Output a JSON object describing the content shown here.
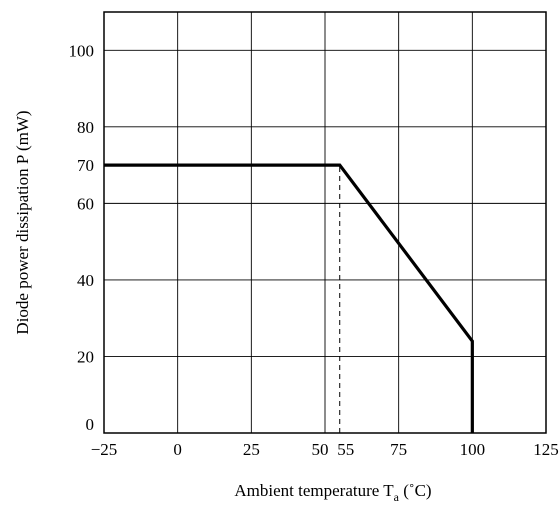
{
  "chart_data": {
    "type": "line",
    "title": "",
    "xlabel": "Ambient temperature",
    "xlabel_symbol": "T",
    "xlabel_subscript": "a",
    "xlabel_unit": "(˚C)",
    "ylabel": "Diode power dissipation P (mW)",
    "xlim": [
      -25,
      125
    ],
    "ylim": [
      0,
      110
    ],
    "grid": true,
    "x_ticks": [
      -25,
      0,
      25,
      50,
      55,
      75,
      100,
      125
    ],
    "x_tick_labels": [
      "−25",
      "0",
      "25",
      "50",
      "55",
      "75",
      "100",
      "125"
    ],
    "y_ticks": [
      0,
      20,
      40,
      60,
      70,
      80,
      100
    ],
    "y_tick_labels": [
      "0",
      "20",
      "40",
      "60",
      "70",
      "80",
      "100"
    ],
    "x_gridlines": [
      -25,
      0,
      25,
      50,
      75,
      100,
      125
    ],
    "y_gridlines": [
      0,
      20,
      40,
      60,
      80,
      100
    ],
    "series": [
      {
        "x": [
          -25,
          55,
          100,
          100
        ],
        "y": [
          70,
          70,
          24,
          0
        ]
      }
    ],
    "annotations": [
      {
        "type": "dashed-vertical",
        "x": 55,
        "y_from": 0,
        "y_to": 70
      }
    ]
  }
}
